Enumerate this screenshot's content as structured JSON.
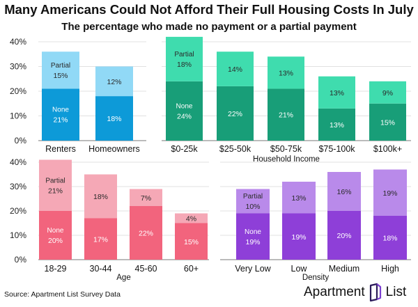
{
  "title": "Many Americans Could Not Afford Their Full Housing Costs In July",
  "subtitle": "The percentage who made no payment or a partial payment",
  "source": "Source: Apartment List Survey Data",
  "brand": {
    "name": "Apartment",
    "name2": "List"
  },
  "chart_data": [
    {
      "type": "bar",
      "stacked": true,
      "categories": [
        "Renters",
        "Homeowners"
      ],
      "series": [
        {
          "name": "None",
          "values": [
            21,
            18
          ],
          "labels": [
            "21%",
            "18%"
          ],
          "color": "#0d9ad8"
        },
        {
          "name": "Partial",
          "values": [
            15,
            12
          ],
          "labels": [
            "15%",
            "12%"
          ],
          "color": "#91d9f6"
        }
      ],
      "xlabel": "",
      "ylim": [
        0,
        40
      ],
      "yticks": [
        "0%",
        "10%",
        "20%",
        "30%",
        "40%"
      ],
      "grid": true
    },
    {
      "type": "bar",
      "stacked": true,
      "categories": [
        "$0-25k",
        "$25-50k",
        "$50-75k",
        "$75-100k",
        "$100k+"
      ],
      "series": [
        {
          "name": "None",
          "values": [
            24,
            22,
            21,
            13,
            15
          ],
          "labels": [
            "24%",
            "22%",
            "21%",
            "13%",
            "15%"
          ],
          "color": "#189e78"
        },
        {
          "name": "Partial",
          "values": [
            18,
            14,
            13,
            13,
            9
          ],
          "labels": [
            "18%",
            "14%",
            "13%",
            "13%",
            "9%"
          ],
          "color": "#3fdcae"
        }
      ],
      "xlabel": "Household Income",
      "ylim": [
        0,
        40
      ],
      "grid": true
    },
    {
      "type": "bar",
      "stacked": true,
      "categories": [
        "18-29",
        "30-44",
        "45-60",
        "60+"
      ],
      "series": [
        {
          "name": "None",
          "values": [
            20,
            17,
            22,
            15
          ],
          "labels": [
            "20%",
            "17%",
            "22%",
            "15%"
          ],
          "color": "#f2647d"
        },
        {
          "name": "Partial",
          "values": [
            21,
            18,
            7,
            4
          ],
          "labels": [
            "21%",
            "18%",
            "7%",
            "4%"
          ],
          "color": "#f5a8b6"
        }
      ],
      "xlabel": "Age",
      "ylim": [
        0,
        40
      ],
      "yticks": [
        "0%",
        "10%",
        "20%",
        "30%",
        "40%"
      ],
      "grid": true
    },
    {
      "type": "bar",
      "stacked": true,
      "categories": [
        "Very Low",
        "Low",
        "Medium",
        "High"
      ],
      "series": [
        {
          "name": "None",
          "values": [
            19,
            19,
            20,
            18
          ],
          "labels": [
            "19%",
            "19%",
            "20%",
            "18%"
          ],
          "color": "#8e3fd8"
        },
        {
          "name": "Partial",
          "values": [
            10,
            13,
            16,
            19
          ],
          "labels": [
            "10%",
            "13%",
            "16%",
            "19%"
          ],
          "color": "#b98aea"
        }
      ],
      "xlabel": "Density",
      "ylim": [
        0,
        40
      ],
      "grid": true
    }
  ]
}
